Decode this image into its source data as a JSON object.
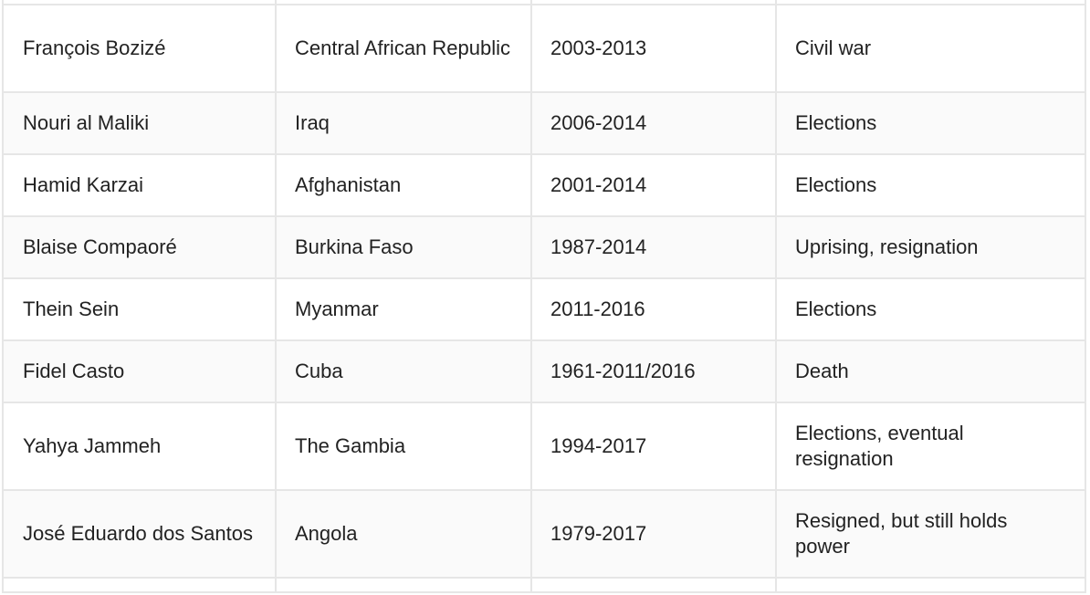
{
  "table": {
    "rows": [
      {
        "leader": "François Bozizé",
        "country": "Central African Republic",
        "years": "2003-2013",
        "end": "Civil war"
      },
      {
        "leader": "Nouri al Maliki",
        "country": "Iraq",
        "years": "2006-2014",
        "end": "Elections"
      },
      {
        "leader": "Hamid Karzai",
        "country": "Afghanistan",
        "years": "2001-2014",
        "end": "Elections"
      },
      {
        "leader": "Blaise Compaoré",
        "country": "Burkina Faso",
        "years": "1987-2014",
        "end": "Uprising, resignation"
      },
      {
        "leader": "Thein Sein",
        "country": "Myanmar",
        "years": "2011-2016",
        "end": "Elections"
      },
      {
        "leader": "Fidel Casto",
        "country": "Cuba",
        "years": "1961-2011/2016",
        "end": "Death"
      },
      {
        "leader": "Yahya Jammeh",
        "country": "The Gambia",
        "years": "1994-2017",
        "end": "Elections, eventual resignation"
      },
      {
        "leader": "José Eduardo dos Santos",
        "country": "Angola",
        "years": "1979-2017",
        "end": "Resigned, but still holds power"
      }
    ]
  }
}
